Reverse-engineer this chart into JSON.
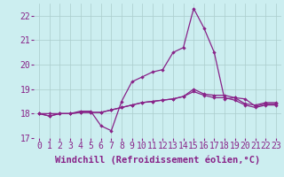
{
  "hours": [
    0,
    1,
    2,
    3,
    4,
    5,
    6,
    7,
    8,
    9,
    10,
    11,
    12,
    13,
    14,
    15,
    16,
    17,
    18,
    19,
    20,
    21,
    22,
    23
  ],
  "windchill_line": [
    18.0,
    17.9,
    18.0,
    18.0,
    18.1,
    18.1,
    17.5,
    17.3,
    18.5,
    19.3,
    19.5,
    19.7,
    19.8,
    20.5,
    20.7,
    22.3,
    21.5,
    20.5,
    18.6,
    18.65,
    18.6,
    18.3,
    18.4,
    18.4
  ],
  "temp_line1": [
    18.0,
    17.9,
    18.0,
    18.0,
    18.05,
    18.05,
    18.05,
    18.15,
    18.25,
    18.35,
    18.45,
    18.5,
    18.55,
    18.6,
    18.7,
    18.9,
    18.75,
    18.65,
    18.65,
    18.55,
    18.35,
    18.25,
    18.35,
    18.35
  ],
  "temp_line2": [
    18.0,
    18.0,
    18.0,
    18.0,
    18.05,
    18.05,
    18.05,
    18.15,
    18.25,
    18.35,
    18.45,
    18.5,
    18.55,
    18.6,
    18.7,
    19.0,
    18.8,
    18.75,
    18.75,
    18.65,
    18.4,
    18.35,
    18.45,
    18.45
  ],
  "bg_color": "#cceef0",
  "line_color": "#882288",
  "grid_color": "#aacccc",
  "ylim_min": 17,
  "ylim_max": 22.5,
  "xlabel": "Windchill (Refroidissement éolien,°C)",
  "yticks": [
    17,
    18,
    19,
    20,
    21,
    22
  ],
  "xlabel_fontsize": 7.5,
  "tick_fontsize": 7
}
